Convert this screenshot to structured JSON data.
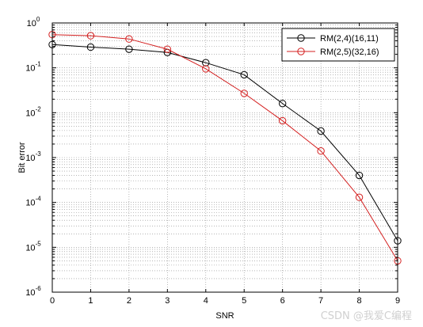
{
  "chart_data": {
    "type": "line",
    "xlabel": "SNR",
    "ylabel": "Bit error",
    "xlim": [
      0,
      9
    ],
    "ylim": [
      1e-06,
      1
    ],
    "yscale": "log",
    "x_ticks": [
      "0",
      "1",
      "2",
      "3",
      "4",
      "5",
      "6",
      "7",
      "8",
      "9"
    ],
    "y_ticks": [
      {
        "base": "10",
        "exp": "0"
      },
      {
        "base": "10",
        "exp": "-1"
      },
      {
        "base": "10",
        "exp": "-2"
      },
      {
        "base": "10",
        "exp": "-3"
      },
      {
        "base": "10",
        "exp": "-4"
      },
      {
        "base": "10",
        "exp": "-5"
      },
      {
        "base": "10",
        "exp": "-6"
      }
    ],
    "grid": true,
    "legend_position": "top-right",
    "x": [
      0,
      1,
      2,
      3,
      4,
      5,
      6,
      7,
      8,
      9
    ],
    "series": [
      {
        "name": "RM(2,4)(16,11)",
        "color": "#000000",
        "marker": "circle",
        "values": [
          0.33,
          0.29,
          0.26,
          0.22,
          0.13,
          0.07,
          0.016,
          0.0039,
          0.0004,
          1.4e-05
        ]
      },
      {
        "name": "RM(2,5)(32,16)",
        "color": "#d42020",
        "marker": "circle",
        "values": [
          0.55,
          0.52,
          0.44,
          0.26,
          0.095,
          0.027,
          0.0066,
          0.0014,
          0.00013,
          5e-06
        ]
      }
    ]
  },
  "watermark": "CSDN @我爱C编程"
}
